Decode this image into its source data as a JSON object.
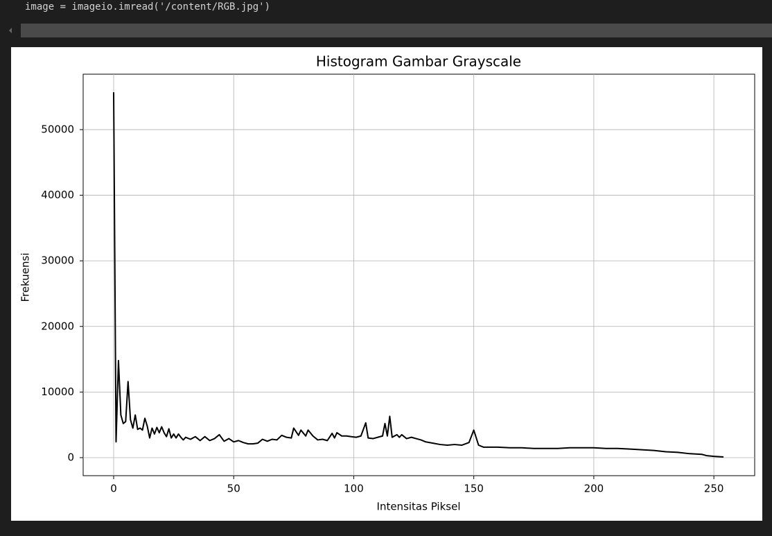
{
  "code": "image = imageio.imread('/content/RGB.jpg')",
  "chart_data": {
    "type": "line",
    "title": "Histogram Gambar Grayscale",
    "x_label": "Intensitas Piksel",
    "y_label": "Frekuensi",
    "x": [
      0,
      1,
      2,
      3,
      4,
      5,
      6,
      7,
      8,
      9,
      10,
      11,
      12,
      13,
      14,
      15,
      16,
      17,
      18,
      19,
      20,
      21,
      22,
      23,
      24,
      25,
      26,
      27,
      28,
      29,
      30,
      32,
      34,
      36,
      38,
      40,
      42,
      44,
      46,
      48,
      50,
      52,
      54,
      56,
      58,
      60,
      62,
      64,
      66,
      68,
      70,
      72,
      74,
      75,
      77,
      78,
      80,
      81,
      83,
      85,
      87,
      89,
      91,
      92,
      93,
      95,
      97,
      99,
      101,
      103,
      105,
      106,
      108,
      110,
      112,
      113,
      114,
      115,
      116,
      118,
      119,
      120,
      122,
      124,
      126,
      128,
      130,
      133,
      136,
      139,
      142,
      145,
      148,
      150,
      152,
      154,
      157,
      160,
      165,
      170,
      175,
      180,
      185,
      190,
      195,
      200,
      205,
      210,
      215,
      220,
      225,
      230,
      235,
      240,
      245,
      247,
      250,
      254
    ],
    "series": [
      {
        "name": "Frekuensi",
        "color": "#000000",
        "values": [
          55700,
          2400,
          14800,
          6500,
          5200,
          5500,
          11600,
          5800,
          4500,
          6500,
          4300,
          4500,
          4200,
          6000,
          4800,
          3000,
          4500,
          3600,
          4600,
          3800,
          4700,
          3800,
          3200,
          4400,
          3000,
          3600,
          3000,
          3600,
          3100,
          2700,
          3100,
          2800,
          3200,
          2600,
          3200,
          2600,
          2900,
          3500,
          2500,
          2900,
          2400,
          2600,
          2300,
          2100,
          2100,
          2200,
          2800,
          2500,
          2800,
          2700,
          3400,
          3100,
          3000,
          4500,
          3400,
          4200,
          3300,
          4200,
          3300,
          2700,
          2800,
          2600,
          3700,
          3000,
          3800,
          3300,
          3300,
          3200,
          3100,
          3300,
          5300,
          3000,
          2900,
          3100,
          3300,
          5200,
          3300,
          6300,
          3100,
          3500,
          3100,
          3500,
          2900,
          3100,
          2900,
          2700,
          2400,
          2200,
          2000,
          1900,
          2000,
          1900,
          2300,
          4200,
          1900,
          1600,
          1600,
          1600,
          1500,
          1500,
          1400,
          1400,
          1400,
          1500,
          1500,
          1500,
          1400,
          1400,
          1300,
          1200,
          1100,
          900,
          800,
          600,
          500,
          300,
          200,
          100
        ]
      }
    ],
    "xlim": [
      -12.7,
      267
    ],
    "ylim": [
      -2750,
      58450
    ],
    "xticks": [
      0,
      50,
      100,
      150,
      200,
      250
    ],
    "yticks": [
      0,
      10000,
      20000,
      30000,
      40000,
      50000
    ],
    "grid": true
  }
}
